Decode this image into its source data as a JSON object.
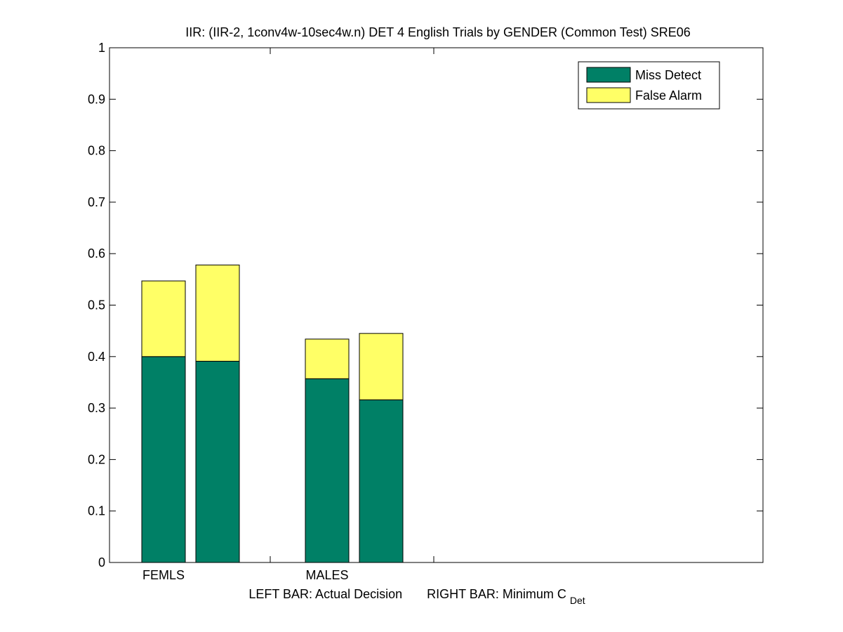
{
  "chart_data": {
    "type": "bar",
    "title": "IIR: (IIR-2, 1conv4w-10sec4w.n) DET 4 English Trials by GENDER (Common Test) SRE06",
    "xlabel": {
      "left_text": "LEFT BAR: Actual Decision",
      "right_text": "RIGHT BAR: Minimum C",
      "subscript": "Det"
    },
    "ylabel": "",
    "ylim": [
      0,
      1
    ],
    "y_ticks": [
      "0",
      "0.1",
      "0.2",
      "0.3",
      "0.4",
      "0.5",
      "0.6",
      "0.7",
      "0.8",
      "0.9",
      "1"
    ],
    "grid": false,
    "legend_position": "top-right",
    "categories": [
      "FEMLS",
      "MALES"
    ],
    "bar_roles": [
      "Actual Decision",
      "Minimum C_Det"
    ],
    "series": [
      {
        "name": "Miss Detect",
        "color": "#008066",
        "values": [
          [
            0.4,
            0.391
          ],
          [
            0.357,
            0.316
          ]
        ]
      },
      {
        "name": "False Alarm",
        "color": "#ffff66",
        "values": [
          [
            0.147,
            0.187
          ],
          [
            0.077,
            0.129
          ]
        ]
      }
    ]
  }
}
